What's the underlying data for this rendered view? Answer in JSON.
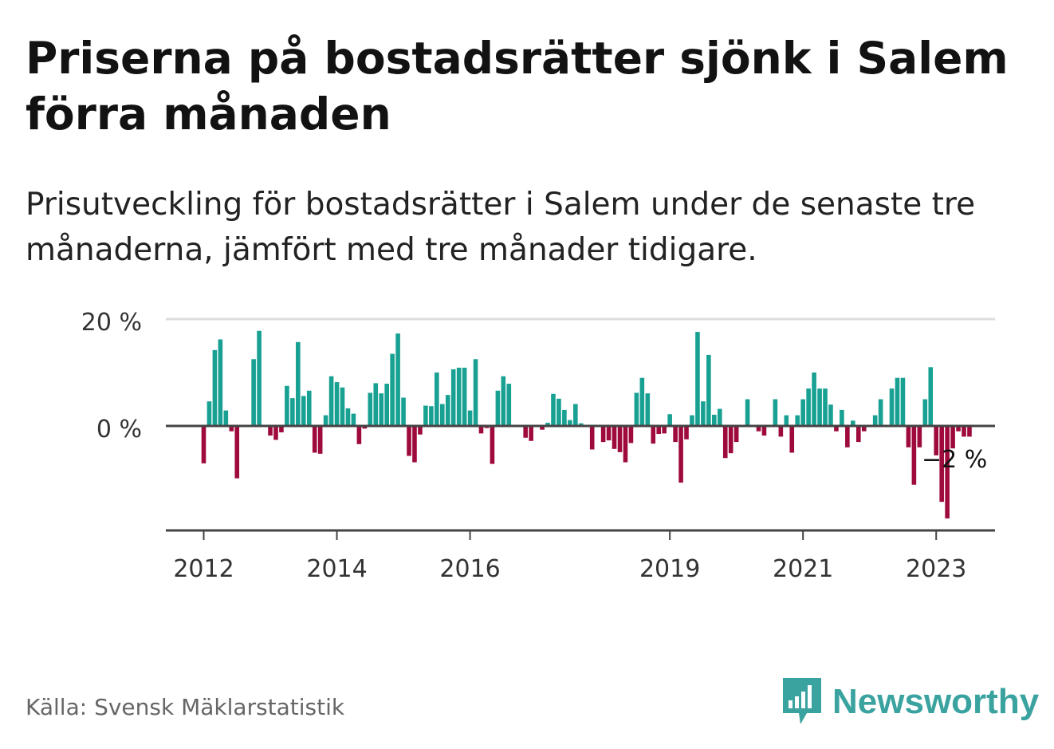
{
  "title": "Priserna på bostadsrätter sjönk i Salem förra månaden",
  "subtitle": "Prisutveckling för bostadsrätter i Salem under de senaste tre månaderna, jämfört med tre månader tidigare.",
  "source": "Källa: Svensk Mäklarstatistik",
  "logo": {
    "name": "Newsworthy",
    "icon": "newsworthy-bar-chart-icon",
    "color": "#3aa39f"
  },
  "colors": {
    "positive": "#18a193",
    "negative": "#9e0a3b",
    "grid": "#dddddd",
    "zero": "#444444",
    "axis": "#444444"
  },
  "chart_data": {
    "type": "bar",
    "title": "Priserna på bostadsrätter sjönk i Salem förra månaden",
    "xlabel": "",
    "ylabel": "",
    "unit": "%",
    "ylim": [
      -20,
      20
    ],
    "y_ticks": [
      {
        "value": 0,
        "label": "0 %"
      },
      {
        "value": 20,
        "label": "20 %"
      }
    ],
    "x_ticks": [
      "2012",
      "2014",
      "2016",
      "2019",
      "2021",
      "2023"
    ],
    "start_year": 2012,
    "start_month": 1,
    "annotation": {
      "label": "−2 %",
      "index": 139
    },
    "values": [
      -7.0,
      4.6,
      14.2,
      16.2,
      2.9,
      -1.0,
      -9.8,
      0,
      0,
      12.5,
      17.8,
      0,
      -1.8,
      -2.6,
      -1.2,
      7.5,
      5.2,
      15.7,
      5.6,
      6.6,
      -5.0,
      -5.2,
      2.0,
      9.3,
      8.2,
      7.2,
      3.3,
      2.3,
      -3.4,
      -0.5,
      6.2,
      8.0,
      6.1,
      7.9,
      13.5,
      17.3,
      5.3,
      -5.6,
      -6.8,
      -1.6,
      3.8,
      3.7,
      10.0,
      4.1,
      5.8,
      10.6,
      10.9,
      10.9,
      2.9,
      12.5,
      -1.4,
      -0.4,
      -7.1,
      6.6,
      9.3,
      7.9,
      0,
      0,
      -2.2,
      -2.8,
      0,
      -0.7,
      0.6,
      6.0,
      5.1,
      3.0,
      1.1,
      4.1,
      0.5,
      0,
      -4.4,
      0,
      -3.0,
      -2.7,
      -4.3,
      -4.9,
      -6.8,
      -3.2,
      6.2,
      9.0,
      6.1,
      -3.3,
      -1.5,
      -1.4,
      2.2,
      -3.0,
      -10.6,
      -2.5,
      2.0,
      17.6,
      4.6,
      13.3,
      2.1,
      3.2,
      -6.0,
      -5.1,
      -3.0,
      0,
      5.0,
      0,
      -1.0,
      -1.8,
      0,
      5.0,
      -2.0,
      2.0,
      -5.0,
      2.0,
      5.0,
      7.0,
      10.0,
      7.0,
      7.0,
      4.0,
      -1.0,
      3.0,
      -4.0,
      1.0,
      -3.0,
      -1.0,
      0,
      2.0,
      5.0,
      0,
      7.0,
      9.0,
      9.0,
      -4.0,
      -11.0,
      -4.0,
      5.0,
      11.0,
      -5.5,
      -14.2,
      -17.3,
      -4.2,
      -1.0,
      -2.0,
      -2.0
    ]
  }
}
